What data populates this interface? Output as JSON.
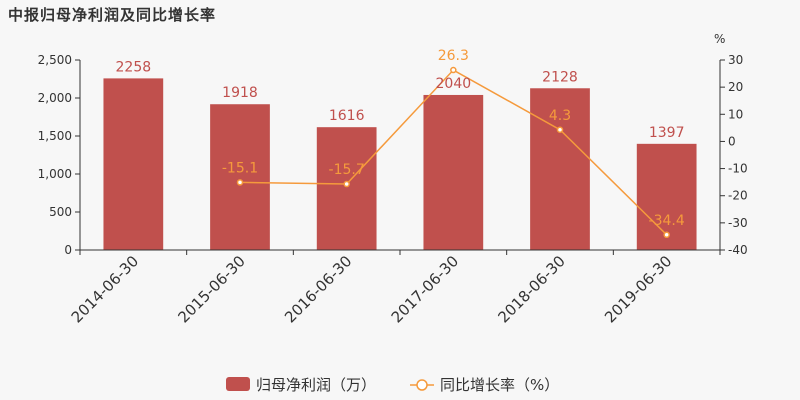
{
  "chart_data": {
    "type": "bar",
    "title": "中报归母净利润及同比增长率",
    "categories": [
      "2014-06-30",
      "2015-06-30",
      "2016-06-30",
      "2017-06-30",
      "2018-06-30",
      "2019-06-30"
    ],
    "series": [
      {
        "name": "归母净利润（万）",
        "type": "bar",
        "axis": "left",
        "values": [
          2258,
          1918,
          1616,
          2040,
          2128,
          1397
        ],
        "labels": [
          "2258",
          "1918",
          "1616",
          "2040",
          "2128",
          "1397"
        ],
        "color": "#c0504d"
      },
      {
        "name": "同比增长率（%）",
        "type": "line",
        "axis": "right",
        "values": [
          null,
          -15.1,
          -15.7,
          26.3,
          4.3,
          -34.4
        ],
        "labels": [
          "",
          "-15.1",
          "-15.7",
          "26.3",
          "4.3",
          "-34.4"
        ],
        "color": "#f59a3c"
      }
    ],
    "y_left": {
      "range": [
        0,
        2500
      ],
      "ticks": [
        0,
        500,
        1000,
        1500,
        2000,
        2500
      ],
      "tick_labels": [
        "0",
        "500",
        "1,000",
        "1,500",
        "2,000",
        "2,500"
      ]
    },
    "y_right": {
      "label": "%",
      "range": [
        -40,
        30
      ],
      "ticks": [
        -40,
        -30,
        -20,
        -10,
        0,
        10,
        20,
        30
      ],
      "tick_labels": [
        "-40",
        "-30",
        "-20",
        "-10",
        "0",
        "10",
        "20",
        "30"
      ]
    },
    "grid": false,
    "legend_position": "bottom-center",
    "x_tick_rotation_deg": -45,
    "axis_color": "#333333"
  }
}
